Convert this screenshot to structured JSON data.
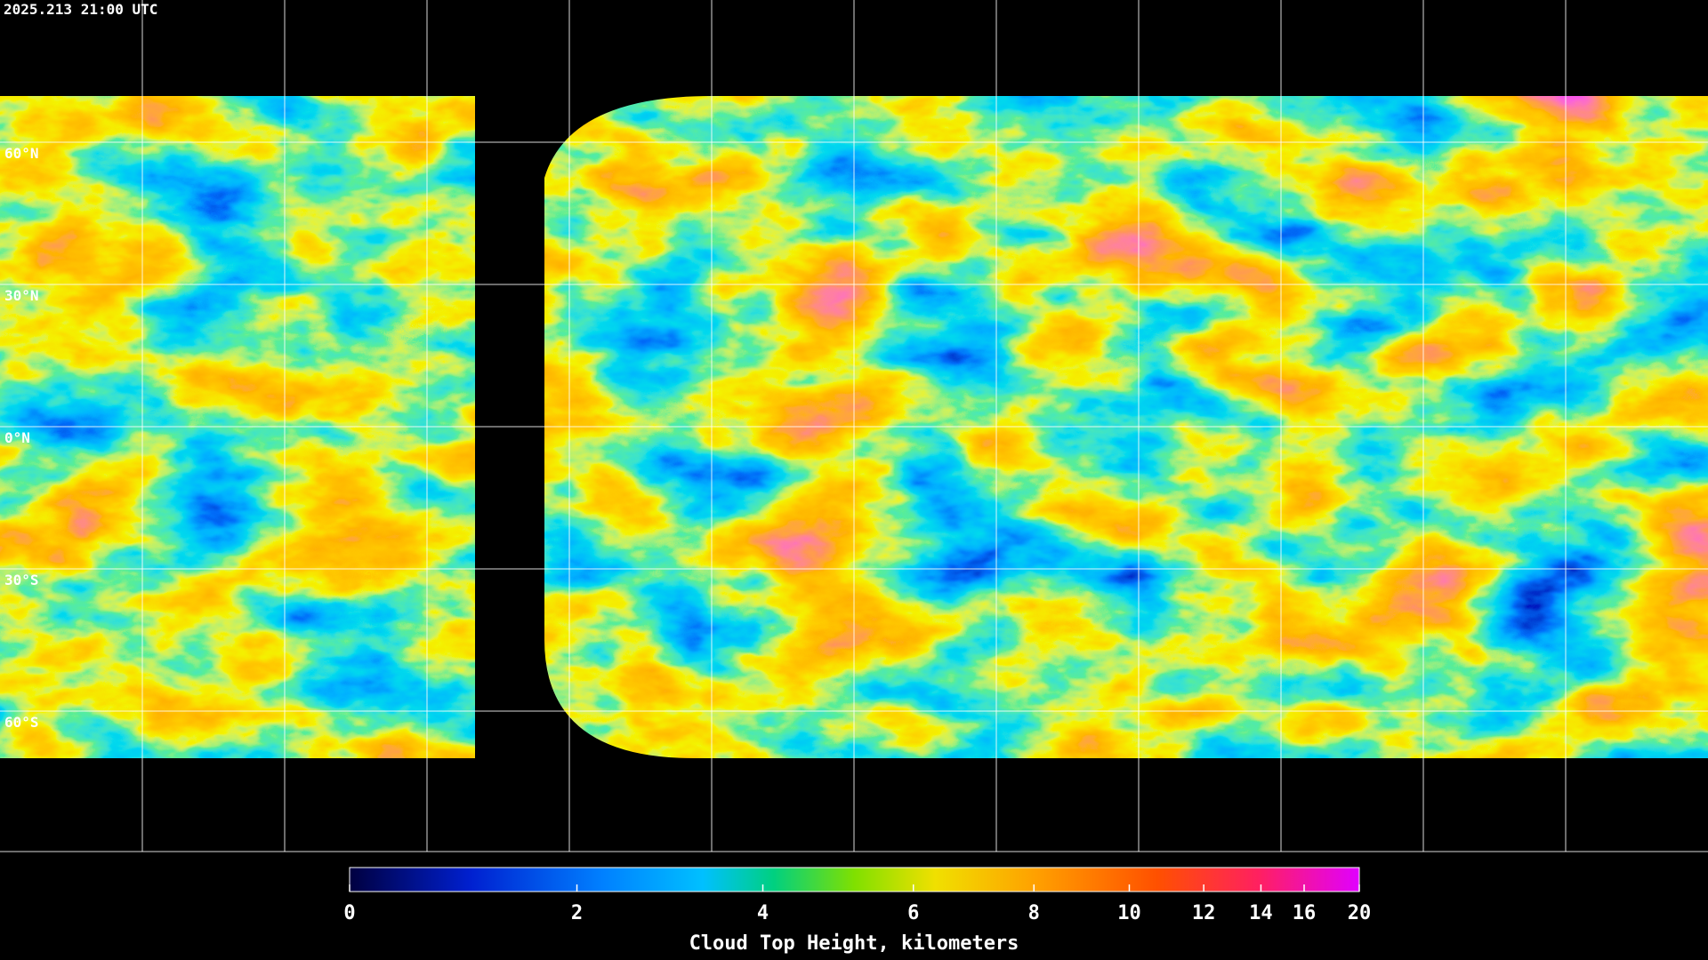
{
  "header": {
    "timestamp": "2025.213 21:00 UTC"
  },
  "map": {
    "lat_labels": [
      "60°N",
      "30°N",
      "0°N",
      "30°S",
      "60°S"
    ]
  },
  "colorbar": {
    "title": "Cloud Top Height, kilometers",
    "range": [
      0,
      20
    ],
    "ticks": [
      0,
      2,
      4,
      6,
      8,
      10,
      12,
      14,
      16,
      20
    ]
  }
}
